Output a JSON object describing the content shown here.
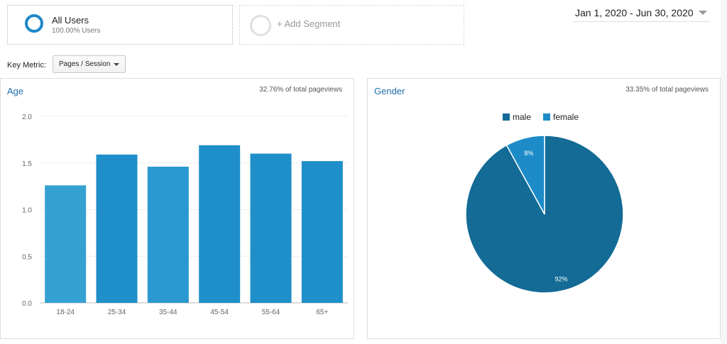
{
  "segments": {
    "active": {
      "name": "All Users",
      "sub": "100.00% Users"
    },
    "add_label": "+ Add Segment"
  },
  "date_range": "Jan 1, 2020 - Jun 30, 2020",
  "key_metric": {
    "label": "Key Metric:",
    "value": "Pages / Session"
  },
  "age_panel": {
    "title": "Age",
    "note": "32.76% of total pageviews"
  },
  "gender_panel": {
    "title": "Gender",
    "note": "33.35% of total pageviews"
  },
  "colors": {
    "accent": "#1e88c7",
    "bar": "#1f8fc9",
    "male": "#136b96",
    "female": "#1d8bc8"
  },
  "chart_data": [
    {
      "type": "bar",
      "categories": [
        "18-24",
        "25-34",
        "35-44",
        "45-54",
        "55-64",
        "65+"
      ],
      "values": [
        1.26,
        1.59,
        1.46,
        1.69,
        1.6,
        1.52
      ],
      "ylim": [
        0,
        2.0
      ],
      "yticks": [
        "0.0",
        "0.5",
        "1.0",
        "1.5",
        "2.0"
      ],
      "grid": true
    },
    {
      "type": "pie",
      "labels": [
        "male",
        "female"
      ],
      "values": [
        92,
        8
      ],
      "data_labels": [
        "92%",
        "8%"
      ],
      "legend": "top"
    }
  ]
}
